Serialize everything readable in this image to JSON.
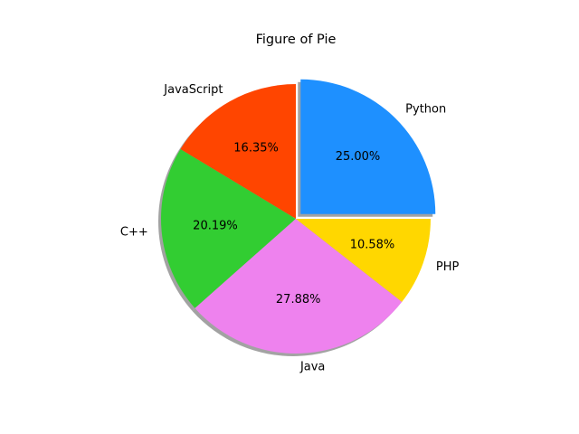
{
  "chart_data": {
    "type": "pie",
    "title": "Figure of Pie",
    "categories": [
      "Python",
      "JavaScript",
      "C++",
      "Java",
      "PHP"
    ],
    "values": [
      25.0,
      16.35,
      20.19,
      27.88,
      10.58
    ],
    "value_labels": [
      "25.00%",
      "16.35%",
      "20.19%",
      "27.88%",
      "10.58%"
    ],
    "colors": [
      "#1e90ff",
      "#ff4500",
      "#32cd32",
      "#ee82ee",
      "#ffd700"
    ],
    "explode": [
      0.05,
      0,
      0,
      0,
      0
    ],
    "shadow": true
  }
}
